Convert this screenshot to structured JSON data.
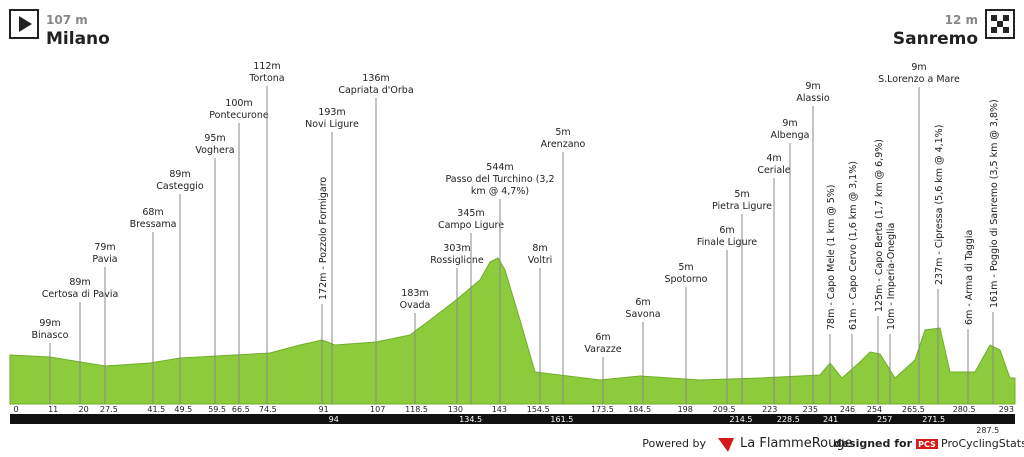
{
  "header": {
    "start": {
      "elevation": "107 m",
      "name": "Milano"
    },
    "finish": {
      "elevation": "12 m",
      "name": "Sanremo"
    }
  },
  "waypoints": [
    {
      "lines": [
        "99m",
        "Binasco"
      ]
    },
    {
      "lines": [
        "89m",
        "Certosa di Pavia"
      ]
    },
    {
      "lines": [
        "79m",
        "Pavia"
      ]
    },
    {
      "lines": [
        "68m",
        "Bressama"
      ]
    },
    {
      "lines": [
        "89m",
        "Casteggio"
      ]
    },
    {
      "lines": [
        "95m",
        "Voghera"
      ]
    },
    {
      "lines": [
        "100m",
        "Pontecurone"
      ]
    },
    {
      "lines": [
        "112m",
        "Tortona"
      ]
    },
    {
      "lines": [
        "172m - Pozzolo Formigaro"
      ],
      "rotated": true
    },
    {
      "lines": [
        "193m",
        "Novi Ligure"
      ]
    },
    {
      "lines": [
        "136m",
        "Capriata d'Orba"
      ]
    },
    {
      "lines": [
        "183m",
        "Ovada"
      ]
    },
    {
      "lines": [
        "303m",
        "Rossiglione"
      ]
    },
    {
      "lines": [
        "345m",
        "Campo Ligure"
      ]
    },
    {
      "lines": [
        "544m",
        "Passo del Turchino (3,2",
        "km @ 4,7%)"
      ]
    },
    {
      "lines": [
        "8m",
        "Voltri"
      ]
    },
    {
      "lines": [
        "5m",
        "Arenzano"
      ]
    },
    {
      "lines": [
        "6m",
        "Varazze"
      ]
    },
    {
      "lines": [
        "6m",
        "Savona"
      ]
    },
    {
      "lines": [
        "5m",
        "Spotorno"
      ]
    },
    {
      "lines": [
        "6m",
        "Finale Ligure"
      ]
    },
    {
      "lines": [
        "5m",
        "Pietra Ligure"
      ]
    },
    {
      "lines": [
        "4m",
        "Ceriale"
      ]
    },
    {
      "lines": [
        "9m",
        "Albenga"
      ]
    },
    {
      "lines": [
        "9m",
        "Alassio"
      ]
    },
    {
      "lines": [
        "78m - Capo Mele (1 km @ 5%)"
      ],
      "rotated": true
    },
    {
      "lines": [
        "61m - Capo Cervo (1,6 km @ 3,1%)"
      ],
      "rotated": true
    },
    {
      "lines": [
        "125m - Capo Berta (1,7 km @ 6,9%)"
      ],
      "rotated": true
    },
    {
      "lines": [
        "10m - Imperia-Oneglia"
      ],
      "rotated": true
    },
    {
      "lines": [
        "9m",
        "S.Lorenzo a Mare"
      ]
    },
    {
      "lines": [
        "237m - Cipressa (5,6 km @ 4,1%)"
      ],
      "rotated": true
    },
    {
      "lines": [
        "6m - Arma di Taggia"
      ],
      "rotated": true
    },
    {
      "lines": [
        "161m - Poggio di Sanremo (3,5 km @ 3,8%)"
      ],
      "rotated": true
    }
  ],
  "km_marks": [
    0,
    11,
    20,
    27.5,
    41.5,
    49.5,
    59.5,
    66.5,
    74.5,
    91,
    107,
    118.5,
    130,
    143,
    154.5,
    173.5,
    184.5,
    198,
    209.5,
    223,
    235,
    246,
    254,
    265.5,
    280.5,
    293
  ],
  "km_marks_bar": [
    94,
    134.5,
    161.5,
    214.5,
    228.5,
    241,
    257,
    271.5
  ],
  "km_mark_below": 287.5,
  "footer": {
    "powered": "Powered by",
    "brand": "La FlammeRouge",
    "designed": "designed for",
    "pcs_logo": "PCS",
    "pcs": "ProCyclingStats"
  }
}
